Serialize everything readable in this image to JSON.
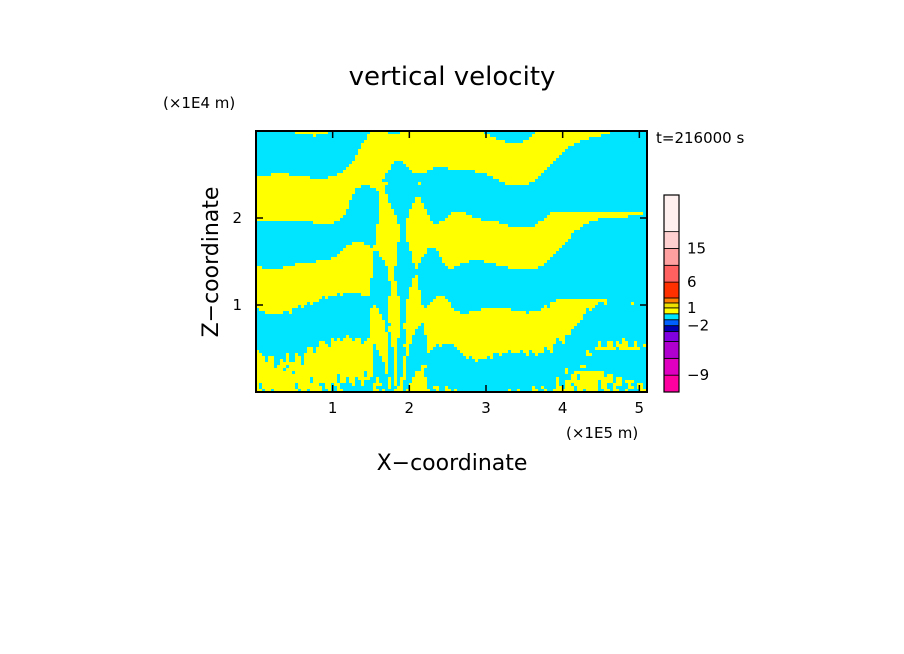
{
  "chart_data": {
    "type": "heatmap",
    "title": "vertical velocity",
    "xlabel": "X−coordinate",
    "ylabel": "Z−coordinate",
    "x_unit": "(×1E5 m)",
    "y_unit": "(×1E4 m)",
    "time_label": "t=216000 s",
    "xlim": [
      0,
      5.1
    ],
    "ylim": [
      0,
      3.0
    ],
    "x_ticks": [
      1,
      2,
      3,
      4,
      5
    ],
    "y_ticks": [
      1,
      2
    ],
    "x_tick_labels": [
      "1",
      "2",
      "3",
      "4",
      "5"
    ],
    "y_tick_labels": [
      "1",
      "2"
    ],
    "field_colors": {
      "negative": "#00e5ff",
      "positive": "#ffff00"
    },
    "colorbar": {
      "levels": [
        -12,
        -9,
        -6,
        -4,
        -3,
        -2,
        -1,
        0,
        1,
        2,
        3,
        6,
        10,
        15,
        20,
        25
      ],
      "colors": [
        "#ff00a0",
        "#e000c0",
        "#b000d0",
        "#8000e0",
        "#0000b0",
        "#0060ff",
        "#00e5ff",
        "#ffff00",
        "#f0e000",
        "#ff8000",
        "#ff3000",
        "#ff6060",
        "#ffa0a0",
        "#ffd0d0",
        "#fff0f0"
      ],
      "labels": [
        {
          "text": "−9",
          "value": -9
        },
        {
          "text": "−2",
          "value": -2
        },
        {
          "text": "1",
          "value": 1
        },
        {
          "text": "6",
          "value": 6
        },
        {
          "text": "15",
          "value": 15
        }
      ]
    }
  }
}
